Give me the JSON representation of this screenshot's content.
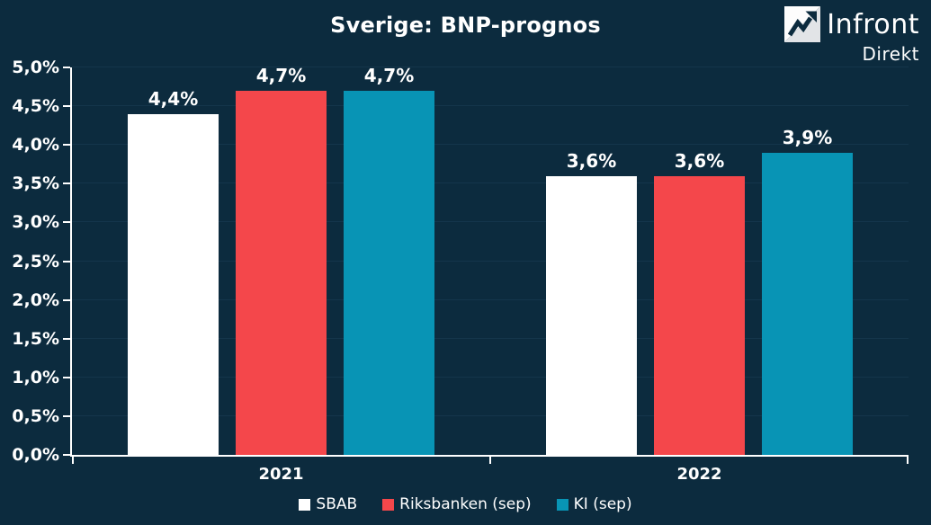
{
  "logo": {
    "brand": "Infront",
    "sub": "Direkt"
  },
  "colors": {
    "background": "#0C2B3E",
    "axis": "#FFFFFF",
    "gridline": "#14354B",
    "sbab": "#FFFFFF",
    "riksbanken": "#F4474B",
    "ki": "#0894B5"
  },
  "chart_data": {
    "type": "bar",
    "title": "Sverige: BNP-prognos",
    "categories": [
      "2021",
      "2022"
    ],
    "series": [
      {
        "name": "SBAB",
        "color": "#FFFFFF",
        "values": [
          4.4,
          3.6
        ],
        "labels": [
          "4,4%",
          "3,6%"
        ]
      },
      {
        "name": "Riksbanken (sep)",
        "color": "#F4474B",
        "values": [
          4.7,
          3.6
        ],
        "labels": [
          "4,7%",
          "3,6%"
        ]
      },
      {
        "name": "KI (sep)",
        "color": "#0894B5",
        "values": [
          4.7,
          3.9
        ],
        "labels": [
          "4,7%",
          "3,9%"
        ]
      }
    ],
    "xlabel": "",
    "ylabel": "",
    "ylim": [
      0,
      5
    ],
    "yticks": [
      "0,0%",
      "0,5%",
      "1,0%",
      "1,5%",
      "2,0%",
      "2,5%",
      "3,0%",
      "3,5%",
      "4,0%",
      "4,5%",
      "5,0%"
    ],
    "grid": true,
    "legend_position": "bottom"
  }
}
